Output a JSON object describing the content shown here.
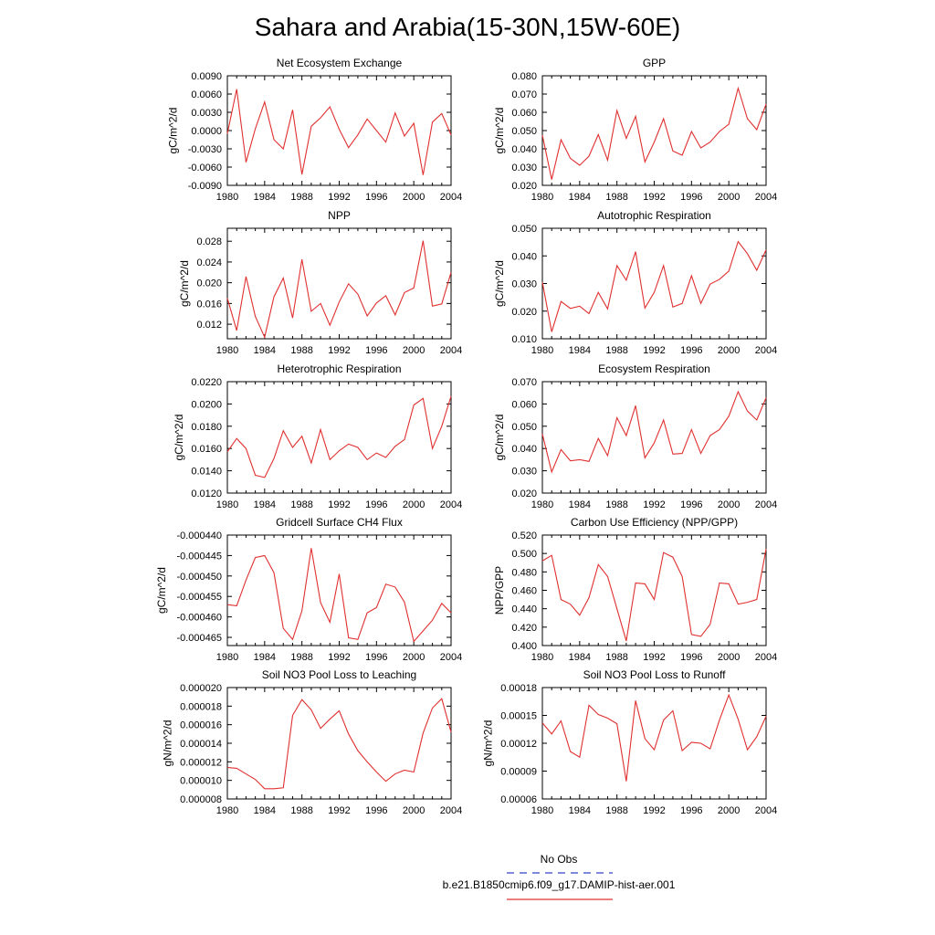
{
  "title": "Sahara and Arabia(15-30N,15W-60E)",
  "legend": [
    {
      "label": "No Obs",
      "color": "#3344cc",
      "style": "dashed"
    },
    {
      "label": "b.e21.B1850cmip6.f09_g17.DAMIP-hist-aer.001",
      "color": "#e03030",
      "style": "solid"
    }
  ],
  "chart_data": [
    {
      "type": "line",
      "title": "Net Ecosystem Exchange",
      "ylabel": "gC/m^2/d",
      "xlim": [
        1980,
        2004
      ],
      "ylim": [
        -0.009,
        0.009
      ],
      "xticks": [
        "1980",
        "1984",
        "1988",
        "1992",
        "1996",
        "2000",
        "2004"
      ],
      "yticks": [
        "-0.0090",
        "-0.0060",
        "-0.0030",
        "0.0000",
        "0.0030",
        "0.0060",
        "0.0090"
      ],
      "x": [
        1980,
        1981,
        1982,
        1983,
        1984,
        1985,
        1986,
        1987,
        1988,
        1989,
        1990,
        1991,
        1992,
        1993,
        1994,
        1995,
        1996,
        1997,
        1998,
        1999,
        2000,
        2001,
        2002,
        2003,
        2004
      ],
      "series": [
        {
          "values": [
            -0.0005,
            0.0068,
            -0.0052,
            0.0003,
            0.0047,
            -0.0015,
            -0.003,
            0.0034,
            -0.0072,
            0.0007,
            0.0021,
            0.0039,
            0.0002,
            -0.0028,
            -0.0007,
            0.0019,
            0.0,
            -0.0019,
            0.0029,
            -0.0009,
            0.0012,
            -0.0073,
            0.0014,
            0.0028,
            -0.0007
          ]
        }
      ]
    },
    {
      "type": "line",
      "title": "GPP",
      "ylabel": "gC/m^2/d",
      "xlim": [
        1980,
        2004
      ],
      "ylim": [
        0.02,
        0.08
      ],
      "xticks": [
        "1980",
        "1984",
        "1988",
        "1992",
        "1996",
        "2000",
        "2004"
      ],
      "yticks": [
        "0.020",
        "0.030",
        "0.040",
        "0.050",
        "0.060",
        "0.070",
        "0.080"
      ],
      "x": [
        1980,
        1981,
        1982,
        1983,
        1984,
        1985,
        1986,
        1987,
        1988,
        1989,
        1990,
        1991,
        1992,
        1993,
        1994,
        1995,
        1996,
        1997,
        1998,
        1999,
        2000,
        2001,
        2002,
        2003,
        2004
      ],
      "series": [
        {
          "values": [
            0.0475,
            0.0232,
            0.045,
            0.0348,
            0.031,
            0.036,
            0.0478,
            0.0338,
            0.061,
            0.0457,
            0.0578,
            0.0328,
            0.0437,
            0.0565,
            0.0388,
            0.0365,
            0.0495,
            0.0405,
            0.0437,
            0.0495,
            0.0535,
            0.0732,
            0.0565,
            0.0505,
            0.0645
          ]
        }
      ]
    },
    {
      "type": "line",
      "title": "NPP",
      "ylabel": "gC/m^2/d",
      "xlim": [
        1980,
        2004
      ],
      "ylim": [
        0.0092,
        0.0305
      ],
      "xticks": [
        "1980",
        "1984",
        "1988",
        "1992",
        "1996",
        "2000",
        "2004"
      ],
      "yticks": [
        "0.012",
        "0.016",
        "0.020",
        "0.024",
        "0.028"
      ],
      "x": [
        1980,
        1981,
        1982,
        1983,
        1984,
        1985,
        1986,
        1987,
        1988,
        1989,
        1990,
        1991,
        1992,
        1993,
        1994,
        1995,
        1996,
        1997,
        1998,
        1999,
        2000,
        2001,
        2002,
        2003,
        2004
      ],
      "series": [
        {
          "values": [
            0.017,
            0.0108,
            0.0212,
            0.0135,
            0.0095,
            0.0173,
            0.0209,
            0.0132,
            0.0245,
            0.0145,
            0.016,
            0.0118,
            0.0163,
            0.0198,
            0.0178,
            0.0136,
            0.0161,
            0.0175,
            0.0138,
            0.0181,
            0.019,
            0.0281,
            0.0155,
            0.0159,
            0.022
          ]
        }
      ]
    },
    {
      "type": "line",
      "title": "Autotrophic Respiration",
      "ylabel": "gC/m^2/d",
      "xlim": [
        1980,
        2004
      ],
      "ylim": [
        0.01,
        0.05
      ],
      "xticks": [
        "1980",
        "1984",
        "1988",
        "1992",
        "1996",
        "2000",
        "2004"
      ],
      "yticks": [
        "0.010",
        "0.020",
        "0.030",
        "0.040",
        "0.050"
      ],
      "x": [
        1980,
        1981,
        1982,
        1983,
        1984,
        1985,
        1986,
        1987,
        1988,
        1989,
        1990,
        1991,
        1992,
        1993,
        1994,
        1995,
        1996,
        1997,
        1998,
        1999,
        2000,
        2001,
        2002,
        2003,
        2004
      ],
      "series": [
        {
          "values": [
            0.0305,
            0.0125,
            0.0235,
            0.021,
            0.0218,
            0.0191,
            0.0268,
            0.0208,
            0.0365,
            0.0312,
            0.0415,
            0.0211,
            0.0268,
            0.0365,
            0.0215,
            0.0228,
            0.0328,
            0.0228,
            0.0298,
            0.0315,
            0.0345,
            0.0452,
            0.0408,
            0.0348,
            0.0422
          ]
        }
      ]
    },
    {
      "type": "line",
      "title": "Heterotrophic Respiration",
      "ylabel": "gC/m^2/d",
      "xlim": [
        1980,
        2004
      ],
      "ylim": [
        0.012,
        0.022
      ],
      "xticks": [
        "1980",
        "1984",
        "1988",
        "1992",
        "1996",
        "2000",
        "2004"
      ],
      "yticks": [
        "0.0120",
        "0.0140",
        "0.0160",
        "0.0180",
        "0.0200",
        "0.0220"
      ],
      "x": [
        1980,
        1981,
        1982,
        1983,
        1984,
        1985,
        1986,
        1987,
        1988,
        1989,
        1990,
        1991,
        1992,
        1993,
        1994,
        1995,
        1996,
        1997,
        1998,
        1999,
        2000,
        2001,
        2002,
        2003,
        2004
      ],
      "series": [
        {
          "values": [
            0.0157,
            0.0169,
            0.016,
            0.0136,
            0.0134,
            0.0151,
            0.0176,
            0.0161,
            0.0171,
            0.0147,
            0.0177,
            0.015,
            0.0158,
            0.0164,
            0.0161,
            0.015,
            0.0156,
            0.0152,
            0.0162,
            0.0168,
            0.0199,
            0.0205,
            0.016,
            0.018,
            0.0207
          ]
        }
      ]
    },
    {
      "type": "line",
      "title": "Ecosystem Respiration",
      "ylabel": "gC/m^2/d",
      "xlim": [
        1980,
        2004
      ],
      "ylim": [
        0.02,
        0.07
      ],
      "xticks": [
        "1980",
        "1984",
        "1988",
        "1992",
        "1996",
        "2000",
        "2004"
      ],
      "yticks": [
        "0.020",
        "0.030",
        "0.040",
        "0.050",
        "0.060",
        "0.070"
      ],
      "x": [
        1980,
        1981,
        1982,
        1983,
        1984,
        1985,
        1986,
        1987,
        1988,
        1989,
        1990,
        1991,
        1992,
        1993,
        1994,
        1995,
        1996,
        1997,
        1998,
        1999,
        2000,
        2001,
        2002,
        2003,
        2004
      ],
      "series": [
        {
          "values": [
            0.0465,
            0.0295,
            0.0395,
            0.0345,
            0.035,
            0.0342,
            0.0445,
            0.0368,
            0.0538,
            0.0458,
            0.0592,
            0.0358,
            0.0425,
            0.0528,
            0.0375,
            0.0378,
            0.0485,
            0.0378,
            0.0458,
            0.0485,
            0.0545,
            0.0655,
            0.0568,
            0.0528,
            0.0628
          ]
        }
      ]
    },
    {
      "type": "line",
      "title": "Gridcell Surface CH4 Flux",
      "ylabel": "gC/m^2/d",
      "xlim": [
        1980,
        2004
      ],
      "ylim": [
        -0.000467,
        -0.00044
      ],
      "xticks": [
        "1980",
        "1984",
        "1988",
        "1992",
        "1996",
        "2000",
        "2004"
      ],
      "yticks": [
        "-0.000465",
        "-0.000460",
        "-0.000455",
        "-0.000450",
        "-0.000445",
        "-0.000440"
      ],
      "x": [
        1980,
        1981,
        1982,
        1983,
        1984,
        1985,
        1986,
        1987,
        1988,
        1989,
        1990,
        1991,
        1992,
        1993,
        1994,
        1995,
        1996,
        1997,
        1998,
        1999,
        2000,
        2001,
        2002,
        2003,
        2004
      ],
      "series": [
        {
          "values": [
            -0.000457,
            -0.0004573,
            -0.000451,
            -0.0004455,
            -0.000445,
            -0.0004492,
            -0.0004628,
            -0.0004655,
            -0.0004585,
            -0.0004432,
            -0.0004565,
            -0.0004613,
            -0.0004495,
            -0.0004651,
            -0.0004655,
            -0.000459,
            -0.0004577,
            -0.000452,
            -0.0004527,
            -0.0004564,
            -0.000466,
            -0.0004634,
            -0.0004608,
            -0.0004567,
            -0.000459
          ]
        }
      ]
    },
    {
      "type": "line",
      "title": "Carbon Use Efficiency (NPP/GPP)",
      "ylabel": "NPP/GPP",
      "xlim": [
        1980,
        2004
      ],
      "ylim": [
        0.4,
        0.52
      ],
      "xticks": [
        "1980",
        "1984",
        "1988",
        "1992",
        "1996",
        "2000",
        "2004"
      ],
      "yticks": [
        "0.400",
        "0.420",
        "0.440",
        "0.460",
        "0.480",
        "0.500",
        "0.520"
      ],
      "x": [
        1980,
        1981,
        1982,
        1983,
        1984,
        1985,
        1986,
        1987,
        1988,
        1989,
        1990,
        1991,
        1992,
        1993,
        1994,
        1995,
        1996,
        1997,
        1998,
        1999,
        2000,
        2001,
        2002,
        2003,
        2004
      ],
      "series": [
        {
          "values": [
            0.492,
            0.498,
            0.45,
            0.445,
            0.433,
            0.452,
            0.488,
            0.475,
            0.44,
            0.405,
            0.468,
            0.467,
            0.45,
            0.501,
            0.496,
            0.475,
            0.412,
            0.41,
            0.423,
            0.468,
            0.467,
            0.445,
            0.447,
            0.45,
            0.505
          ]
        }
      ]
    },
    {
      "type": "line",
      "title": "Soil NO3 Pool Loss to Leaching",
      "ylabel": "gN/m^2/d",
      "xlim": [
        1980,
        2004
      ],
      "ylim": [
        8e-06,
        2e-05
      ],
      "xticks": [
        "1980",
        "1984",
        "1988",
        "1992",
        "1996",
        "2000",
        "2004"
      ],
      "yticks": [
        "0.000008",
        "0.000010",
        "0.000012",
        "0.000014",
        "0.000016",
        "0.000018",
        "0.000020"
      ],
      "x": [
        1980,
        1981,
        1982,
        1983,
        1984,
        1985,
        1986,
        1987,
        1988,
        1989,
        1990,
        1991,
        1992,
        1993,
        1994,
        1995,
        1996,
        1997,
        1998,
        1999,
        2000,
        2001,
        2002,
        2003,
        2004
      ],
      "series": [
        {
          "values": [
            1.14e-05,
            1.13e-05,
            1.07e-05,
            1.01e-05,
            9.1e-06,
            9.1e-06,
            9.2e-06,
            1.7e-05,
            1.87e-05,
            1.76e-05,
            1.56e-05,
            1.66e-05,
            1.75e-05,
            1.5e-05,
            1.32e-05,
            1.2e-05,
            1.09e-05,
            9.9e-06,
            1.07e-05,
            1.11e-05,
            1.09e-05,
            1.51e-05,
            1.78e-05,
            1.88e-05,
            1.52e-05
          ]
        }
      ]
    },
    {
      "type": "line",
      "title": "Soil NO3 Pool Loss to Runoff",
      "ylabel": "gN/m^2/d",
      "xlim": [
        1980,
        2004
      ],
      "ylim": [
        6e-05,
        0.00018
      ],
      "xticks": [
        "1980",
        "1984",
        "1988",
        "1992",
        "1996",
        "2000",
        "2004"
      ],
      "yticks": [
        "0.00006",
        "0.00009",
        "0.00012",
        "0.00015",
        "0.00018"
      ],
      "x": [
        1980,
        1981,
        1982,
        1983,
        1984,
        1985,
        1986,
        1987,
        1988,
        1989,
        1990,
        1991,
        1992,
        1993,
        1994,
        1995,
        1996,
        1997,
        1998,
        1999,
        2000,
        2001,
        2002,
        2003,
        2004
      ],
      "series": [
        {
          "values": [
            0.000142,
            0.00013,
            0.000144,
            0.000111,
            0.000105,
            0.000161,
            0.000151,
            0.000147,
            0.000141,
            7.9e-05,
            0.000166,
            0.000125,
            0.000113,
            0.000145,
            0.000155,
            0.000112,
            0.000121,
            0.00012,
            0.000114,
            0.000145,
            0.000172,
            0.000146,
            0.000113,
            0.000127,
            0.000149
          ]
        }
      ]
    }
  ]
}
